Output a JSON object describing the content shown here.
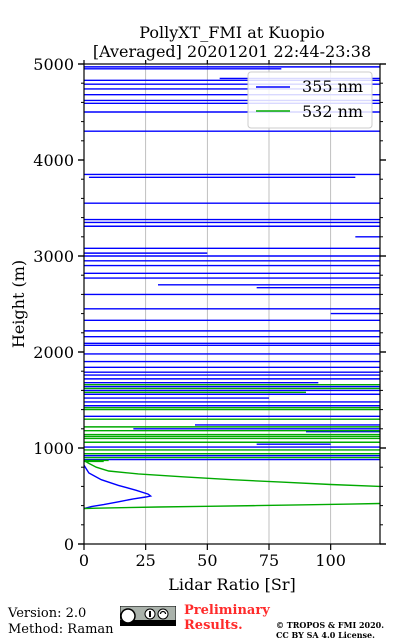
{
  "chart_data": {
    "type": "line",
    "title_line1": "PollyXT_FMI at Kuopio",
    "title_line2": "[Averaged] 20201201 22:44-23:38",
    "xlabel": "Lidar Ratio [Sr]",
    "ylabel": "Height (m)",
    "xlim": [
      0,
      120
    ],
    "ylim": [
      0,
      5000
    ],
    "x_ticks": [
      0,
      25,
      50,
      75,
      100
    ],
    "y_ticks": [
      0,
      1000,
      2000,
      3000,
      4000,
      5000
    ],
    "grid": "vertical",
    "legend_position": "upper right",
    "colors": {
      "s355": "#0000ff",
      "s532": "#00aa00"
    },
    "series": [
      {
        "name": "355 nm",
        "key": "s355",
        "smooth_curve": {
          "x": [
            0,
            3,
            8,
            14,
            20,
            25,
            27,
            26,
            21,
            14,
            7,
            2,
            0
          ],
          "y": [
            370,
            390,
            410,
            440,
            470,
            490,
            500,
            520,
            560,
            610,
            670,
            740,
            820
          ]
        },
        "spikes": [
          [
            4970,
            0,
            120
          ],
          [
            4950,
            0,
            80
          ],
          [
            4850,
            55,
            120
          ],
          [
            4830,
            0,
            120
          ],
          [
            4790,
            0,
            120
          ],
          [
            4740,
            0,
            110
          ],
          [
            4680,
            0,
            120
          ],
          [
            4620,
            0,
            120
          ],
          [
            4590,
            0,
            120
          ],
          [
            4500,
            0,
            120
          ],
          [
            4300,
            0,
            120
          ],
          [
            3850,
            0,
            120
          ],
          [
            3820,
            2,
            110
          ],
          [
            3550,
            0,
            120
          ],
          [
            3380,
            0,
            120
          ],
          [
            3350,
            0,
            120
          ],
          [
            3310,
            0,
            120
          ],
          [
            3200,
            110,
            120
          ],
          [
            3080,
            0,
            120
          ],
          [
            3030,
            0,
            50
          ],
          [
            3000,
            0,
            120
          ],
          [
            2950,
            0,
            120
          ],
          [
            2900,
            0,
            120
          ],
          [
            2820,
            0,
            120
          ],
          [
            2770,
            0,
            120
          ],
          [
            2700,
            30,
            120
          ],
          [
            2670,
            70,
            120
          ],
          [
            2600,
            0,
            120
          ],
          [
            2450,
            0,
            120
          ],
          [
            2400,
            100,
            120
          ],
          [
            2330,
            0,
            120
          ],
          [
            2220,
            0,
            120
          ],
          [
            2160,
            0,
            120
          ],
          [
            2090,
            0,
            120
          ],
          [
            2070,
            0,
            120
          ],
          [
            1980,
            0,
            120
          ],
          [
            1900,
            0,
            120
          ],
          [
            1840,
            0,
            120
          ],
          [
            1790,
            0,
            120
          ],
          [
            1760,
            0,
            120
          ],
          [
            1720,
            0,
            120
          ],
          [
            1680,
            0,
            95
          ],
          [
            1640,
            0,
            120
          ],
          [
            1600,
            0,
            120
          ],
          [
            1560,
            0,
            120
          ],
          [
            1520,
            0,
            75
          ],
          [
            1480,
            0,
            120
          ],
          [
            1440,
            0,
            120
          ],
          [
            1330,
            0,
            120
          ],
          [
            1240,
            45,
            120
          ],
          [
            1200,
            20,
            120
          ],
          [
            1170,
            90,
            120
          ],
          [
            1040,
            70,
            100
          ],
          [
            1010,
            0,
            120
          ],
          [
            920,
            0,
            120
          ],
          [
            880,
            0,
            120
          ]
        ]
      },
      {
        "name": "532 nm",
        "key": "s532",
        "smooth_curve": {
          "x": [
            0,
            5,
            15,
            30,
            50,
            70,
            90,
            108,
            120
          ],
          "y": [
            370,
            373,
            378,
            385,
            393,
            400,
            408,
            416,
            422
          ]
        },
        "smooth_curve_2": {
          "x": [
            120,
            100,
            80,
            60,
            40,
            22,
            10,
            5,
            2,
            0
          ],
          "y": [
            600,
            620,
            645,
            670,
            700,
            730,
            760,
            800,
            840,
            870
          ]
        },
        "spikes": [
          [
            1660,
            0,
            120
          ],
          [
            1620,
            0,
            120
          ],
          [
            1580,
            0,
            90
          ],
          [
            1420,
            0,
            120
          ],
          [
            1400,
            0,
            120
          ],
          [
            1300,
            0,
            120
          ],
          [
            1220,
            0,
            120
          ],
          [
            1180,
            0,
            120
          ],
          [
            1140,
            0,
            120
          ],
          [
            1120,
            0,
            120
          ],
          [
            1100,
            0,
            120
          ],
          [
            1060,
            0,
            120
          ],
          [
            980,
            0,
            120
          ],
          [
            940,
            0,
            120
          ],
          [
            900,
            0,
            120
          ],
          [
            870,
            0,
            10
          ],
          [
            860,
            0,
            8
          ]
        ]
      }
    ]
  },
  "footer": {
    "version": "Version: 2.0",
    "method": "Method: Raman",
    "preliminary_line1": "Preliminary",
    "preliminary_line2": "Results.",
    "copyright_line1": "© TROPOS & FMI 2020.",
    "copyright_line2": "CC BY SA 4.0 License."
  }
}
